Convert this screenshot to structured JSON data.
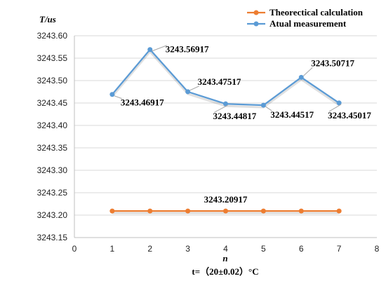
{
  "chart_data": {
    "type": "line",
    "ylabel": "T/us",
    "xlabel": "n",
    "footnote": "t=（20±0.02）°C",
    "xlim": [
      0,
      8
    ],
    "ylim": [
      3243.15,
      3243.6
    ],
    "x_ticks": [
      0,
      1,
      2,
      3,
      4,
      5,
      6,
      7,
      8
    ],
    "y_ticks": [
      3243.15,
      3243.2,
      3243.25,
      3243.3,
      3243.35,
      3243.4,
      3243.45,
      3243.5,
      3243.55,
      3243.6
    ],
    "grid": "horizontal",
    "legend_position": "top-right",
    "series": [
      {
        "name": "Theorectical calculation",
        "color": "#ED7D31",
        "x": [
          1,
          2,
          3,
          4,
          5,
          6,
          7
        ],
        "values": [
          3243.20917,
          3243.20917,
          3243.20917,
          3243.20917,
          3243.20917,
          3243.20917,
          3243.20917
        ],
        "labels": [
          "",
          "",
          "",
          "3243.20917",
          "",
          "",
          ""
        ]
      },
      {
        "name": "Atual measurement",
        "color": "#5B9BD5",
        "x": [
          1,
          2,
          3,
          4,
          5,
          6,
          7
        ],
        "values": [
          3243.46917,
          3243.56917,
          3243.47517,
          3243.44817,
          3243.44517,
          3243.50717,
          3243.45017
        ],
        "labels": [
          "3243.46917",
          "3243.56917",
          "3243.47517",
          "3243.44817",
          "3243.44517",
          "3243.50717",
          "3243.45017"
        ]
      }
    ]
  }
}
